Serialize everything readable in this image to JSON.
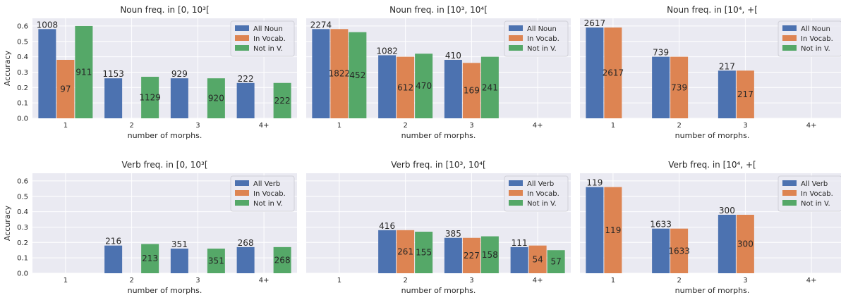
{
  "colors": {
    "all": "#4c72b0",
    "vocab": "#dd8452",
    "notin": "#55a868",
    "panel_bg": "#eaeaf2",
    "grid": "#ffffff",
    "text": "#262626"
  },
  "chart_data": [
    {
      "type": "bar",
      "title": "Noun freq. in [0, 10³[",
      "xlabel": "number of morphs.",
      "ylabel": "Accuracy",
      "ylim": [
        0,
        0.65
      ],
      "yticks": [
        "0.0",
        "0.1",
        "0.2",
        "0.3",
        "0.4",
        "0.5",
        "0.6"
      ],
      "categories": [
        "1",
        "2",
        "3",
        "4+"
      ],
      "legend_position": "top-right",
      "series": [
        {
          "name": "All Noun",
          "values": [
            0.58,
            0.26,
            0.26,
            0.23
          ],
          "labels": [
            "1008",
            "1153",
            "929",
            "222"
          ]
        },
        {
          "name": "In Vocab.",
          "values": [
            0.38,
            null,
            null,
            null
          ],
          "labels": [
            "97",
            "",
            "",
            ""
          ]
        },
        {
          "name": "Not in V.",
          "values": [
            0.6,
            0.27,
            0.26,
            0.23
          ],
          "labels": [
            "911",
            "1129",
            "920",
            "222"
          ]
        }
      ]
    },
    {
      "type": "bar",
      "title": "Noun freq. in [10³, 10⁴[",
      "xlabel": "number of morphs.",
      "ylabel": "",
      "ylim": [
        0,
        0.65
      ],
      "yticks": [],
      "categories": [
        "1",
        "2",
        "3",
        "4+"
      ],
      "legend_position": "top-right",
      "series": [
        {
          "name": "All Noun",
          "values": [
            0.58,
            0.41,
            0.38,
            null
          ],
          "labels": [
            "2274",
            "1082",
            "410",
            ""
          ]
        },
        {
          "name": "In Vocab.",
          "values": [
            0.58,
            0.4,
            0.36,
            null
          ],
          "labels": [
            "1822",
            "612",
            "169",
            ""
          ]
        },
        {
          "name": "Not in V.",
          "values": [
            0.56,
            0.42,
            0.4,
            null
          ],
          "labels": [
            "452",
            "470",
            "241",
            ""
          ]
        }
      ]
    },
    {
      "type": "bar",
      "title": "Noun freq. in [10⁴, +[",
      "xlabel": "number of morphs.",
      "ylabel": "",
      "ylim": [
        0,
        0.65
      ],
      "yticks": [],
      "categories": [
        "1",
        "2",
        "3",
        "4+"
      ],
      "legend_position": "top-right",
      "series": [
        {
          "name": "All Noun",
          "values": [
            0.59,
            0.4,
            0.31,
            null
          ],
          "labels": [
            "2617",
            "739",
            "217",
            ""
          ]
        },
        {
          "name": "In Vocab.",
          "values": [
            0.59,
            0.4,
            0.31,
            null
          ],
          "labels": [
            "2617",
            "739",
            "217",
            ""
          ]
        },
        {
          "name": "Not in V.",
          "values": [
            null,
            null,
            null,
            null
          ],
          "labels": [
            "",
            "",
            "",
            ""
          ]
        }
      ]
    },
    {
      "type": "bar",
      "title": "Verb freq. in [0, 10³[",
      "xlabel": "number of morphs.",
      "ylabel": "Accuracy",
      "ylim": [
        0,
        0.65
      ],
      "yticks": [
        "0.0",
        "0.1",
        "0.2",
        "0.3",
        "0.4",
        "0.5",
        "0.6"
      ],
      "categories": [
        "1",
        "2",
        "3",
        "4+"
      ],
      "legend_position": "top-right",
      "series": [
        {
          "name": "All Verb",
          "values": [
            null,
            0.18,
            0.16,
            0.17
          ],
          "labels": [
            "",
            "216",
            "351",
            "268"
          ]
        },
        {
          "name": "In Vocab.",
          "values": [
            null,
            null,
            null,
            null
          ],
          "labels": [
            "",
            "",
            "",
            ""
          ]
        },
        {
          "name": "Not in V.",
          "values": [
            null,
            0.19,
            0.16,
            0.17
          ],
          "labels": [
            "",
            "213",
            "351",
            "268"
          ]
        }
      ]
    },
    {
      "type": "bar",
      "title": "Verb freq. in [10³, 10⁴[",
      "xlabel": "number of morphs.",
      "ylabel": "",
      "ylim": [
        0,
        0.65
      ],
      "yticks": [],
      "categories": [
        "1",
        "2",
        "3",
        "4+"
      ],
      "legend_position": "top-right",
      "series": [
        {
          "name": "All Verb",
          "values": [
            null,
            0.28,
            0.23,
            0.17
          ],
          "labels": [
            "",
            "416",
            "385",
            "111"
          ]
        },
        {
          "name": "In Vocab.",
          "values": [
            null,
            0.28,
            0.23,
            0.18
          ],
          "labels": [
            "",
            "261",
            "227",
            "54"
          ]
        },
        {
          "name": "Not in V.",
          "values": [
            null,
            0.27,
            0.24,
            0.15
          ],
          "labels": [
            "",
            "155",
            "158",
            "57"
          ]
        }
      ]
    },
    {
      "type": "bar",
      "title": "Verb freq. in [10⁴, +[",
      "xlabel": "number of morphs.",
      "ylabel": "",
      "ylim": [
        0,
        0.65
      ],
      "yticks": [],
      "categories": [
        "1",
        "2",
        "3",
        "4+"
      ],
      "legend_position": "top-right",
      "series": [
        {
          "name": "All Verb",
          "values": [
            0.56,
            0.29,
            0.38,
            null
          ],
          "labels": [
            "119",
            "1633",
            "300",
            ""
          ]
        },
        {
          "name": "In Vocab.",
          "values": [
            0.56,
            0.29,
            0.38,
            null
          ],
          "labels": [
            "119",
            "1633",
            "300",
            ""
          ]
        },
        {
          "name": "Not in V.",
          "values": [
            null,
            null,
            null,
            null
          ],
          "labels": [
            "",
            "",
            "",
            ""
          ]
        }
      ]
    }
  ]
}
